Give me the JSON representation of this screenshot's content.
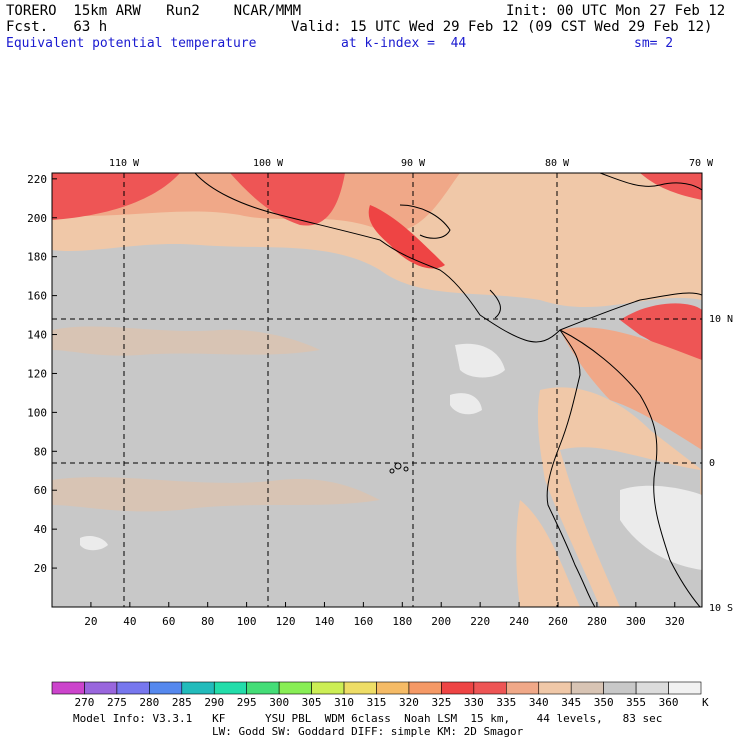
{
  "header": {
    "model": "TORERO  15km ARW   Run2    NCAR/MMM",
    "fcst": "Fcst.   63 h",
    "init": "Init: 00 UTC Mon 27 Feb 12",
    "valid": "Valid: 15 UTC Wed 29 Feb 12 (09 CST Wed 29 Feb 12)",
    "field": "Equivalent potential temperature",
    "level": "at k-index =  44",
    "smooth": "sm= 2"
  },
  "map": {
    "lon_labels": [
      "110 W",
      "100 W",
      "90 W",
      "80 W",
      "70 W"
    ],
    "lat_labels": [
      "10 N",
      "0",
      "10 S"
    ],
    "y_ticks": [
      "20",
      "40",
      "60",
      "80",
      "100",
      "120",
      "140",
      "160",
      "180",
      "200",
      "220"
    ],
    "x_ticks": [
      "20",
      "40",
      "60",
      "80",
      "100",
      "120",
      "140",
      "160",
      "180",
      "200",
      "220",
      "240",
      "260",
      "280",
      "300",
      "320"
    ],
    "grid_ticks_x": [
      40,
      113,
      186,
      260
    ],
    "grid_ticks_y": [
      150,
      76
    ]
  },
  "colorbar": {
    "labels": [
      "270",
      "275",
      "280",
      "285",
      "290",
      "295",
      "300",
      "305",
      "310",
      "315",
      "320",
      "325",
      "330",
      "335",
      "340",
      "345",
      "350",
      "355",
      "360"
    ],
    "unit": "K",
    "colors": [
      "#cc44cc",
      "#9966dd",
      "#7777ee",
      "#5588ee",
      "#22bbbb",
      "#22ddaa",
      "#44dd77",
      "#88ee55",
      "#ccee55",
      "#eedd66",
      "#f5bb66",
      "#f59966",
      "#ee4444",
      "#ee5555",
      "#f0a888",
      "#f0c8a8",
      "#d8c4b4",
      "#c8c8c8",
      "#dcdcdc",
      "#f2f2f2"
    ]
  },
  "footer": {
    "line1": "Model Info: V3.3.1   KF      YSU PBL  WDM 6class  Noah LSM  15 km,    44 levels,   83 sec",
    "line2": "LW: Godd SW: Goddard DIFF: simple KM: 2D Smagor"
  }
}
